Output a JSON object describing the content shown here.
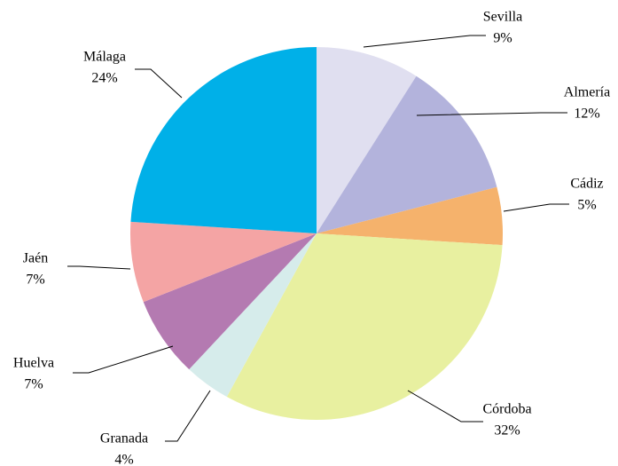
{
  "chart_data": {
    "type": "pie",
    "categories": [
      "Sevilla",
      "Almería",
      "Cádiz",
      "Córdoba",
      "Granada",
      "Huelva",
      "Jaén",
      "Málaga"
    ],
    "values": [
      9,
      12,
      5,
      32,
      4,
      7,
      7,
      24
    ],
    "value_labels": [
      "9%",
      "12%",
      "5%",
      "32%",
      "4%",
      "7%",
      "7%",
      "24%"
    ],
    "colors": [
      "#e0dff0",
      "#b3b3dc",
      "#f5b26c",
      "#e8f0a0",
      "#d6eceb",
      "#b47ab1",
      "#f4a4a4",
      "#00b0e8"
    ]
  }
}
